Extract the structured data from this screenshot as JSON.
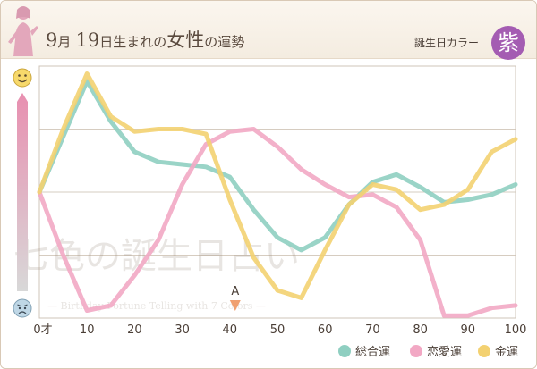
{
  "header": {
    "title_month": "9",
    "title_month_suffix": "月",
    "title_day": "19",
    "title_rest_1": "日生まれの",
    "title_women": "女性",
    "title_rest_2": "の運勢",
    "birthday_color_label": "誕生日カラー",
    "birthday_color_value": "紫",
    "birthday_color_hex": "#a45cb2"
  },
  "watermark": {
    "line1": "七色の誕生日占い",
    "line2": "— Birthday Fortune Telling with 7 Colors —"
  },
  "marker": {
    "label": "A",
    "age": 40,
    "color": "#f0a070"
  },
  "icons": {
    "top": "smiley-face-icon",
    "bottom": "worried-face-icon"
  },
  "chart_data": {
    "type": "line",
    "x": [
      0,
      5,
      10,
      15,
      20,
      25,
      30,
      35,
      40,
      45,
      50,
      55,
      60,
      65,
      70,
      75,
      80,
      85,
      90,
      95,
      100
    ],
    "x_ticks": [
      0,
      10,
      20,
      30,
      40,
      50,
      60,
      70,
      80,
      90,
      100
    ],
    "x_tick_labels": [
      "0才",
      "10",
      "20",
      "30",
      "40",
      "50",
      "60",
      "70",
      "80",
      "90",
      "100"
    ],
    "xlim": [
      0,
      100
    ],
    "ylim": [
      0,
      100
    ],
    "grid": "horizontal",
    "legend_position": "bottom-right",
    "series": [
      {
        "name": "総合運",
        "color": "#8fcfc1",
        "values": [
          50,
          72,
          94,
          78,
          66,
          62,
          61,
          60,
          56,
          43,
          32,
          27,
          32,
          45,
          54,
          57,
          52,
          46,
          47,
          49,
          53
        ]
      },
      {
        "name": "恋愛運",
        "color": "#f2a8c4",
        "values": [
          50,
          25,
          3,
          5,
          17,
          31,
          53,
          69,
          74,
          75,
          68,
          59,
          53,
          48,
          49,
          44,
          31,
          1,
          1,
          4,
          5
        ]
      },
      {
        "name": "金運",
        "color": "#f3d171",
        "values": [
          50,
          75,
          97,
          80,
          74,
          75,
          75,
          73,
          47,
          24,
          11,
          8,
          27,
          45,
          53,
          51,
          43,
          45,
          51,
          66,
          71
        ]
      }
    ]
  }
}
